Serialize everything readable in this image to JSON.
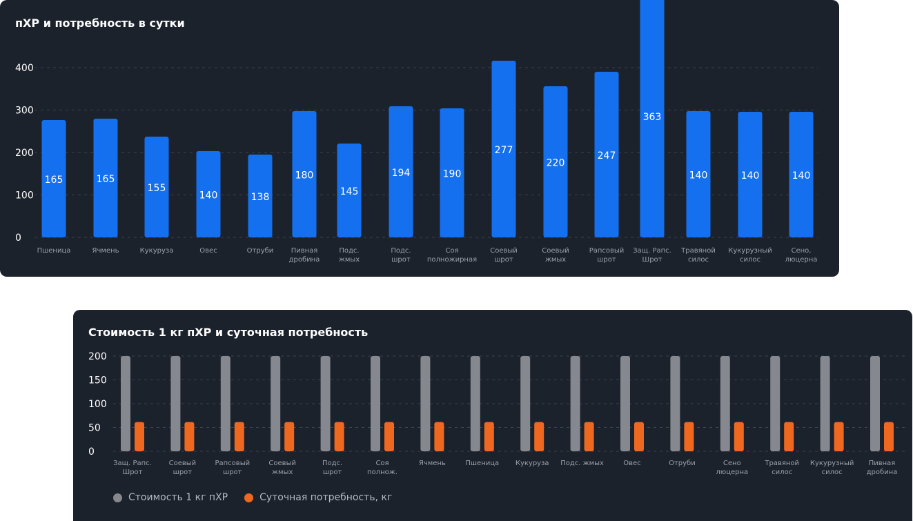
{
  "colors": {
    "bar": "#1570ef",
    "cost": "#85888e",
    "need": "#ef6820",
    "axis_text": "#ffffff",
    "label_text": "#9aa1ad"
  },
  "chart_data": [
    {
      "type": "bar",
      "title": "пХР и потребность в сутки",
      "ylim": [
        0,
        400
      ],
      "yticks": [
        0,
        100,
        200,
        300,
        400
      ],
      "grid": true,
      "categories": [
        [
          "Пшеница"
        ],
        [
          "Ячмень"
        ],
        [
          "Кукуруза"
        ],
        [
          "Овес"
        ],
        [
          "Отруби"
        ],
        [
          "Пивная",
          "дробина"
        ],
        [
          "Подс.",
          "жмых"
        ],
        [
          "Подс.",
          "шрот"
        ],
        [
          "Соя",
          "полножирная"
        ],
        [
          "Соевый",
          "шрот"
        ],
        [
          "Соевый",
          "жмых"
        ],
        [
          "Рапсовый",
          "шрот"
        ],
        [
          "Защ. Рапс.",
          "Шрот"
        ],
        [
          "Травяной",
          "силос"
        ],
        [
          "Кукурузный",
          "силос"
        ],
        [
          "Сено,",
          "люцерна"
        ]
      ],
      "values": [
        165,
        165,
        155,
        140,
        138,
        180,
        145,
        194,
        190,
        277,
        220,
        247,
        363,
        140,
        140,
        140
      ],
      "bar_heights": [
        170,
        172,
        146,
        125,
        120,
        183,
        136,
        190,
        187,
        256,
        219,
        240,
        352,
        183,
        182,
        182
      ]
    },
    {
      "type": "bar",
      "title": "Стоимость 1 кг пХР и суточная потребность",
      "ylim": [
        0,
        200
      ],
      "yticks": [
        0,
        50,
        100,
        150,
        200
      ],
      "grid": true,
      "legend_position": "bottom-left",
      "categories": [
        [
          "Защ. Рапс.",
          "Шрот"
        ],
        [
          "Соевый",
          "шрот"
        ],
        [
          "Рапсовый",
          "шрот"
        ],
        [
          "Соевый",
          "жмых"
        ],
        [
          "Подс.",
          "шрот"
        ],
        [
          "Соя",
          "полнож."
        ],
        [
          "Ячмень"
        ],
        [
          "Пшеница"
        ],
        [
          "Кукуруза"
        ],
        [
          "Подс. жмых"
        ],
        [
          "Овес"
        ],
        [
          "Отруби"
        ],
        [
          "Сено",
          "люцерна"
        ],
        [
          "Травяной",
          "силос"
        ],
        [
          "Кукурузный",
          "силос"
        ],
        [
          "Пивная",
          "дробина"
        ]
      ],
      "series": [
        {
          "name": "Стоимость 1 кг пХР",
          "values": [
            200,
            200,
            200,
            200,
            200,
            200,
            200,
            200,
            200,
            200,
            200,
            200,
            200,
            200,
            200,
            200
          ]
        },
        {
          "name": "Суточная потребность, кг",
          "values": [
            47,
            47,
            47,
            47,
            47,
            47,
            47,
            47,
            47,
            47,
            47,
            47,
            47,
            47,
            47,
            47
          ]
        }
      ]
    }
  ]
}
